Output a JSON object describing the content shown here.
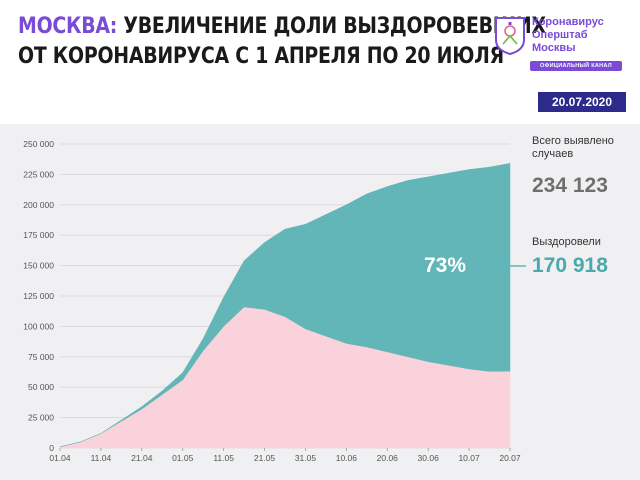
{
  "header": {
    "title_accent": "МОСКВА:",
    "title_line1": "УВЕЛИЧЕНИЕ ДОЛИ ВЫЗДОРОВЕВШИХ",
    "title_line2": "ОТ КОРОНАВИРУСА С 1 АПРЕЛЯ ПО 20 ИЮЛЯ",
    "brand_line1": "Коронавирус",
    "brand_line2": "Оперштаб",
    "brand_line3": "Москвы",
    "channel": "ОФИЦИАЛЬНЫЙ КАНАЛ",
    "date": "20.07.2020",
    "colors": {
      "accent": "#7a4bd6",
      "date_bg": "#2c2a8a"
    }
  },
  "summary": {
    "total_label": "Всего выявлено случаев",
    "total_value": "234 123",
    "recovered_label": "Выздоровели",
    "recovered_value": "170 918",
    "recovered_share": "73%"
  },
  "chart_data": {
    "type": "area",
    "x": [
      "01.04",
      "06.04",
      "11.04",
      "16.04",
      "21.04",
      "26.04",
      "01.05",
      "06.05",
      "11.05",
      "16.05",
      "21.05",
      "26.05",
      "31.05",
      "05.06",
      "10.06",
      "15.06",
      "20.06",
      "25.06",
      "30.06",
      "05.07",
      "10.07",
      "15.07",
      "20.07"
    ],
    "series": [
      {
        "color": "#f9d2dc",
        "values": [
          1000,
          5000,
          12000,
          22000,
          32000,
          44000,
          56000,
          80000,
          100000,
          116000,
          114000,
          108000,
          98000,
          92000,
          86000,
          83000,
          79000,
          75000,
          71000,
          68000,
          65000,
          63000,
          63205
        ]
      },
      {
        "color": "#62b6b7",
        "values": [
          0,
          0,
          0,
          1000,
          2000,
          3000,
          6000,
          10000,
          24000,
          38000,
          55000,
          72000,
          86000,
          100000,
          114000,
          126000,
          136000,
          145000,
          152000,
          158000,
          164000,
          168000,
          170918
        ]
      }
    ],
    "yticks": [
      0,
      25000,
      50000,
      75000,
      100000,
      125000,
      150000,
      175000,
      200000,
      225000,
      250000
    ],
    "ytick_labels": [
      "0",
      "25 000",
      "50 000",
      "75 000",
      "100 000",
      "125 000",
      "150 000",
      "175 000",
      "200 000",
      "225 000",
      "250 000"
    ],
    "xtick_labels": [
      "01.04",
      "11.04",
      "21.04",
      "01.05",
      "11.05",
      "21.05",
      "31.05",
      "10.06",
      "20.06",
      "30.06",
      "10.07",
      "20.07"
    ],
    "ylim": [
      0,
      250000
    ],
    "grid": true
  }
}
